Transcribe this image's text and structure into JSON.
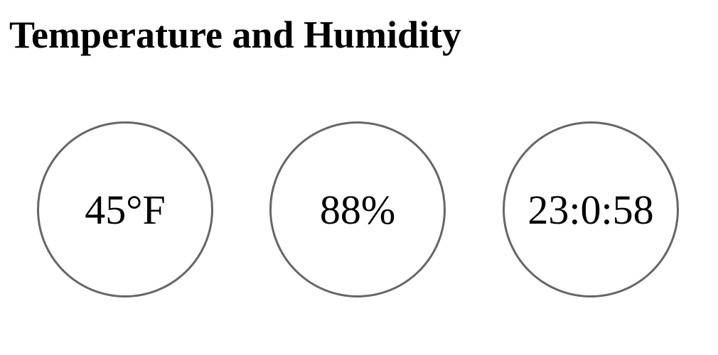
{
  "page": {
    "title": "Temperature and Humidity"
  },
  "readouts": {
    "temperature": "45°F",
    "humidity": "88%",
    "time": "23:0:58"
  },
  "colors": {
    "background": "#ffffff",
    "text": "#000000",
    "circle_border": "#666666"
  }
}
